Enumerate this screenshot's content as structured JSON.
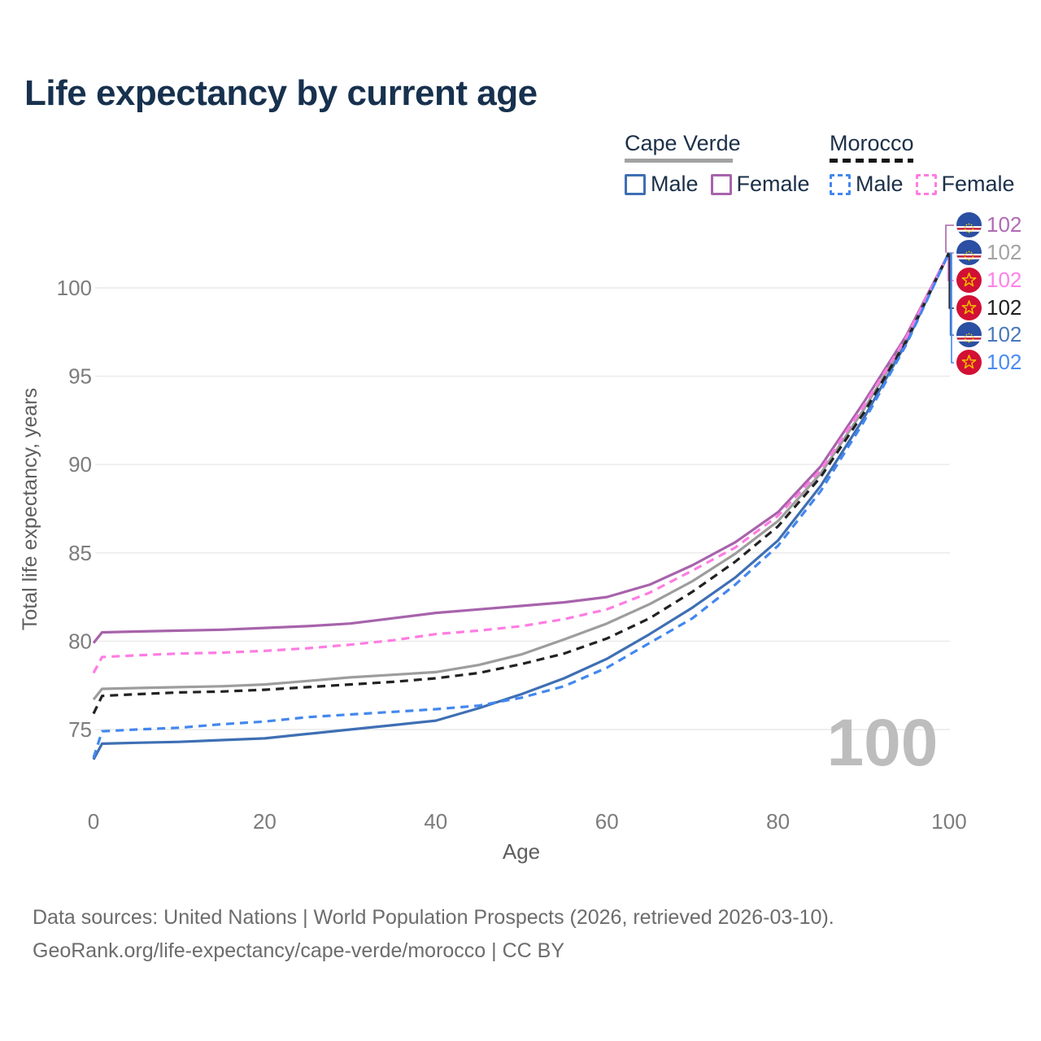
{
  "title": "Life expectancy by current age",
  "legend": {
    "cape_verde_label": "Cape Verde",
    "morocco_label": "Morocco",
    "male_label": "Male",
    "female_label": "Female"
  },
  "chart_data": {
    "type": "line",
    "title": "Life expectancy by current age",
    "xlabel": "Age",
    "ylabel": "Total life expectancy, years",
    "x_ticks": [
      0,
      20,
      40,
      60,
      80,
      100
    ],
    "y_ticks": [
      75,
      80,
      85,
      90,
      95,
      100
    ],
    "xlim": [
      0,
      100
    ],
    "ylim": [
      73,
      102.5
    ],
    "grid": "horizontal-only",
    "legend_position": "top-right",
    "age_indicator_watermark": "100",
    "ages": [
      0,
      1,
      5,
      10,
      15,
      20,
      25,
      30,
      35,
      40,
      45,
      50,
      55,
      60,
      65,
      70,
      75,
      80,
      85,
      90,
      95,
      100
    ],
    "series": [
      {
        "id": "cape-verde-female",
        "name": "Cape Verde Female",
        "country": "Cape Verde",
        "sex": "Female",
        "line": "solid",
        "flag": "cape-verde",
        "color": "#a763ab",
        "label_color": "#b16ab4",
        "end_label": "102",
        "values": [
          79.9,
          80.5,
          80.55,
          80.6,
          80.65,
          80.75,
          80.85,
          81.0,
          81.3,
          81.6,
          81.8,
          82.0,
          82.2,
          82.5,
          83.2,
          84.3,
          85.6,
          87.3,
          89.9,
          93.5,
          97.3,
          102
        ]
      },
      {
        "id": "cape-verde-total",
        "name": "Cape Verde",
        "country": "Cape Verde",
        "sex": "Both",
        "line": "solid",
        "flag": "cape-verde",
        "color": "#9d9d9d",
        "label_color": "#a3a3a3",
        "end_label": "102",
        "values": [
          76.7,
          77.3,
          77.35,
          77.4,
          77.45,
          77.55,
          77.75,
          77.95,
          78.1,
          78.25,
          78.65,
          79.25,
          80.1,
          81.0,
          82.1,
          83.4,
          84.95,
          86.8,
          89.5,
          93.1,
          97.1,
          102
        ]
      },
      {
        "id": "morocco-female",
        "name": "Morocco Female",
        "country": "Morocco",
        "sex": "Female",
        "line": "dashed",
        "flag": "morocco",
        "color": "#ff7ce2",
        "label_color": "#ff80e8",
        "end_label": "102",
        "values": [
          78.2,
          79.1,
          79.2,
          79.3,
          79.35,
          79.45,
          79.6,
          79.8,
          80.05,
          80.4,
          80.6,
          80.85,
          81.25,
          81.8,
          82.75,
          84.0,
          85.3,
          87.1,
          89.7,
          93.3,
          97.2,
          102
        ]
      },
      {
        "id": "morocco-total",
        "name": "Morocco",
        "country": "Morocco",
        "sex": "Both",
        "line": "dashed",
        "flag": "morocco",
        "color": "#222222",
        "label_color": "#1f1f1f",
        "end_label": "102",
        "values": [
          75.9,
          76.9,
          77.0,
          77.1,
          77.15,
          77.25,
          77.4,
          77.55,
          77.7,
          77.9,
          78.2,
          78.7,
          79.3,
          80.15,
          81.3,
          82.8,
          84.5,
          86.5,
          89.3,
          92.9,
          97.0,
          102
        ]
      },
      {
        "id": "cape-verde-male",
        "name": "Cape Verde Male",
        "country": "Cape Verde",
        "sex": "Male",
        "line": "solid",
        "flag": "cape-verde",
        "color": "#3e6fb4",
        "label_color": "#4a78bd",
        "end_label": "102",
        "values": [
          73.3,
          74.2,
          74.25,
          74.3,
          74.4,
          74.5,
          74.75,
          75.0,
          75.25,
          75.5,
          76.2,
          77.0,
          77.9,
          79.0,
          80.4,
          81.9,
          83.6,
          85.7,
          88.8,
          92.6,
          96.9,
          102
        ]
      },
      {
        "id": "morocco-male",
        "name": "Morocco Male",
        "country": "Morocco",
        "sex": "Male",
        "line": "dashed",
        "flag": "morocco",
        "color": "#4387ee",
        "label_color": "#4a8cf2",
        "end_label": "102",
        "values": [
          73.4,
          74.9,
          75.0,
          75.1,
          75.3,
          75.45,
          75.7,
          75.85,
          76.0,
          76.15,
          76.35,
          76.8,
          77.45,
          78.5,
          79.9,
          81.3,
          83.2,
          85.4,
          88.5,
          92.4,
          96.8,
          102
        ]
      }
    ]
  },
  "footer": {
    "line1": "Data sources: United Nations | World Population Prospects (2026, retrieved 2026-03-10).",
    "line2": "GeoRank.org/life-expectancy/cape-verde/morocco | CC BY"
  },
  "colors": {
    "title_text": "#17314e",
    "legend_text": "#1c3049",
    "tick_text": "#7c7c7c",
    "axis_title_text": "#5e5e5e",
    "grid": "#e9e9e9",
    "watermark": "#bdbdbd",
    "cape_verde_male": "#3e6fb4",
    "cape_verde_female": "#a763ab",
    "cape_verde_total": "#9d9d9d",
    "morocco_male": "#4387ee",
    "morocco_female": "#ff7ce2",
    "morocco_total": "#222222",
    "flag_cv_blue": "#2b4fa2",
    "flag_cv_red": "#d01c2e",
    "flag_cv_yellow": "#ffd200",
    "flag_ma_red": "#d21034",
    "flag_ma_gold": "#f0b400"
  }
}
